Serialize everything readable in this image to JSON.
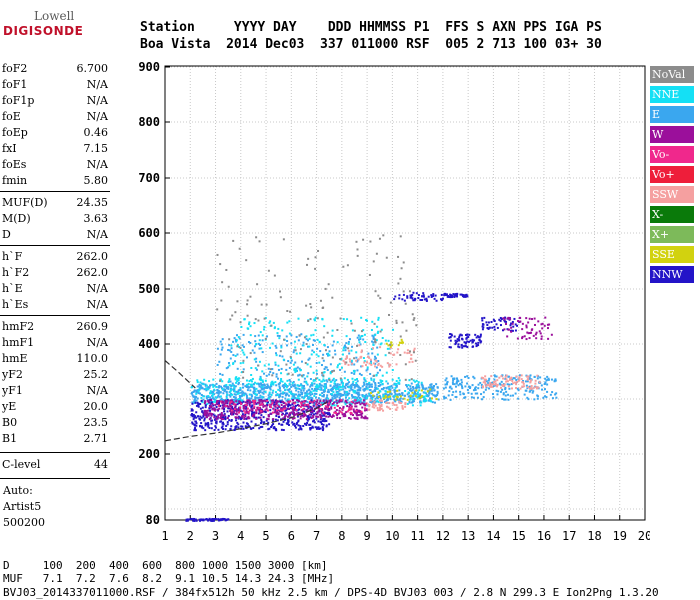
{
  "logo": {
    "line1": "Lowell",
    "line2": "DIGISONDE"
  },
  "header": {
    "line1": "Station     YYYY DAY    DDD HHMMSS P1  FFS S AXN PPS IGA PS",
    "line2": "Boa Vista  2014 Dec03  337 011000 RSF  005 2 713 100 03+ 30"
  },
  "params": [
    {
      "label": "foF2",
      "value": "6.700"
    },
    {
      "label": "foF1",
      "value": "N/A"
    },
    {
      "label": "foF1p",
      "value": "N/A"
    },
    {
      "label": "foE",
      "value": "N/A"
    },
    {
      "label": "foEp",
      "value": "0.46"
    },
    {
      "label": "fxI",
      "value": "7.15"
    },
    {
      "label": "foEs",
      "value": "N/A"
    },
    {
      "label": "fmin",
      "value": "5.80"
    },
    {
      "label": "MUF(D)",
      "value": "24.35"
    },
    {
      "label": "M(D)",
      "value": "3.63"
    },
    {
      "label": "D",
      "value": "N/A"
    },
    {
      "label": "h`F",
      "value": "262.0"
    },
    {
      "label": "h`F2",
      "value": "262.0"
    },
    {
      "label": "h`E",
      "value": "N/A"
    },
    {
      "label": "h`Es",
      "value": "N/A"
    },
    {
      "label": "hmF2",
      "value": "260.9"
    },
    {
      "label": "hmF1",
      "value": "N/A"
    },
    {
      "label": "hmE",
      "value": "110.0"
    },
    {
      "label": "yF2",
      "value": "25.2"
    },
    {
      "label": "yF1",
      "value": "N/A"
    },
    {
      "label": "yE",
      "value": "20.0"
    },
    {
      "label": "B0",
      "value": "23.5"
    },
    {
      "label": "B1",
      "value": "2.71"
    },
    {
      "label": "C-level",
      "value": "44"
    }
  ],
  "auto": {
    "line1": "Auto:",
    "line2": "Artist5",
    "line3": "500200"
  },
  "legend": [
    {
      "label": "NoVal",
      "color": "#8c8c8c"
    },
    {
      "label": "NNE",
      "color": "#14e0f5"
    },
    {
      "label": "E",
      "color": "#3aa7ef"
    },
    {
      "label": "W",
      "color": "#9b0f9b"
    },
    {
      "label": "Vo-",
      "color": "#f0288c"
    },
    {
      "label": "Vo+",
      "color": "#ee1e3a"
    },
    {
      "label": "SSW",
      "color": "#f5a0a0"
    },
    {
      "label": "X-",
      "color": "#0a7a0a"
    },
    {
      "label": "X+",
      "color": "#7dba5a"
    },
    {
      "label": "SSE",
      "color": "#d2d20f"
    },
    {
      "label": "NNW",
      "color": "#2314c8"
    }
  ],
  "bottom": {
    "line1": "D     100  200  400  600  800 1000 1500 3000 [km]",
    "line2": "MUF   7.1  7.2  7.6  8.2  9.1 10.5 14.3 24.3 [MHz]",
    "line3": "BVJ03_2014337011000.RSF / 384fx512h 50 kHz 2.5 km / DPS-4D BVJ03 003 / 2.8 N 299.3 E Ion2Png 1.3.20"
  },
  "chart_data": {
    "type": "scatter",
    "x_ticks": [
      "1",
      "2",
      "3",
      "4",
      "5",
      "6",
      "7",
      "8",
      "9",
      "10",
      "11",
      "12",
      "13",
      "14",
      "15",
      "16",
      "17",
      "18",
      "19",
      "20"
    ],
    "y_ticks": [
      "80",
      "200",
      "300",
      "400",
      "500",
      "600",
      "700",
      "800",
      "900"
    ],
    "xlim": [
      1,
      20
    ],
    "ylim": [
      80,
      900
    ],
    "grid": true,
    "legend_position": "right",
    "clusters": [
      {
        "series": "E",
        "x": [
          2.0,
          11.8
        ],
        "y": [
          295,
          330
        ],
        "count": 900
      },
      {
        "series": "E",
        "x": [
          12.0,
          16.5
        ],
        "y": [
          300,
          345
        ],
        "count": 220
      },
      {
        "series": "E",
        "x": [
          3.0,
          9.5
        ],
        "y": [
          320,
          420
        ],
        "count": 250
      },
      {
        "series": "NNE",
        "x": [
          2.0,
          11.5
        ],
        "y": [
          290,
          340
        ],
        "count": 300
      },
      {
        "series": "NNE",
        "x": [
          3.5,
          10.0
        ],
        "y": [
          330,
          450
        ],
        "count": 200
      },
      {
        "series": "NNW",
        "x": [
          2.0,
          7.5
        ],
        "y": [
          245,
          300
        ],
        "count": 520
      },
      {
        "series": "NNW",
        "x": [
          12.2,
          13.5
        ],
        "y": [
          395,
          420
        ],
        "count": 70
      },
      {
        "series": "NNW",
        "x": [
          10.0,
          12.0
        ],
        "y": [
          480,
          495
        ],
        "count": 45
      },
      {
        "series": "NNW",
        "x": [
          12.0,
          13.0
        ],
        "y": [
          487,
          493
        ],
        "count": 40
      },
      {
        "series": "NNW",
        "x": [
          13.5,
          15.0
        ],
        "y": [
          425,
          450
        ],
        "count": 50
      },
      {
        "series": "NNW",
        "x": [
          1.8,
          3.5
        ],
        "y": [
          80,
          84
        ],
        "count": 60
      },
      {
        "series": "W",
        "x": [
          2.5,
          9.0
        ],
        "y": [
          265,
          300
        ],
        "count": 420
      },
      {
        "series": "W",
        "x": [
          14.3,
          16.3
        ],
        "y": [
          410,
          450
        ],
        "count": 60
      },
      {
        "series": "Vo-",
        "x": [
          3.0,
          9.0
        ],
        "y": [
          275,
          300
        ],
        "count": 90
      },
      {
        "series": "SSW",
        "x": [
          9.0,
          10.5
        ],
        "y": [
          280,
          300
        ],
        "count": 50
      },
      {
        "series": "SSW",
        "x": [
          8.0,
          11.0
        ],
        "y": [
          360,
          400
        ],
        "count": 60
      },
      {
        "series": "SSW",
        "x": [
          13.5,
          15.8
        ],
        "y": [
          320,
          345
        ],
        "count": 90
      },
      {
        "series": "SSE",
        "x": [
          9.0,
          12.0
        ],
        "y": [
          300,
          320
        ],
        "count": 30
      },
      {
        "series": "SSE",
        "x": [
          9.5,
          10.5
        ],
        "y": [
          395,
          410
        ],
        "count": 12
      },
      {
        "series": "NoVal",
        "x": [
          3.0,
          11.0
        ],
        "y": [
          330,
          600
        ],
        "count": 150
      }
    ],
    "trace_curve": {
      "x": [
        1.0,
        1.5,
        2.0,
        3.0,
        4.0,
        5.0,
        6.0,
        7.0,
        7.5
      ],
      "y": [
        224,
        228,
        232,
        238,
        246,
        255,
        266,
        283,
        297
      ]
    },
    "trace_curve_upper": {
      "x": [
        1.0,
        1.5,
        2.2
      ],
      "y": [
        370,
        350,
        320
      ]
    }
  }
}
